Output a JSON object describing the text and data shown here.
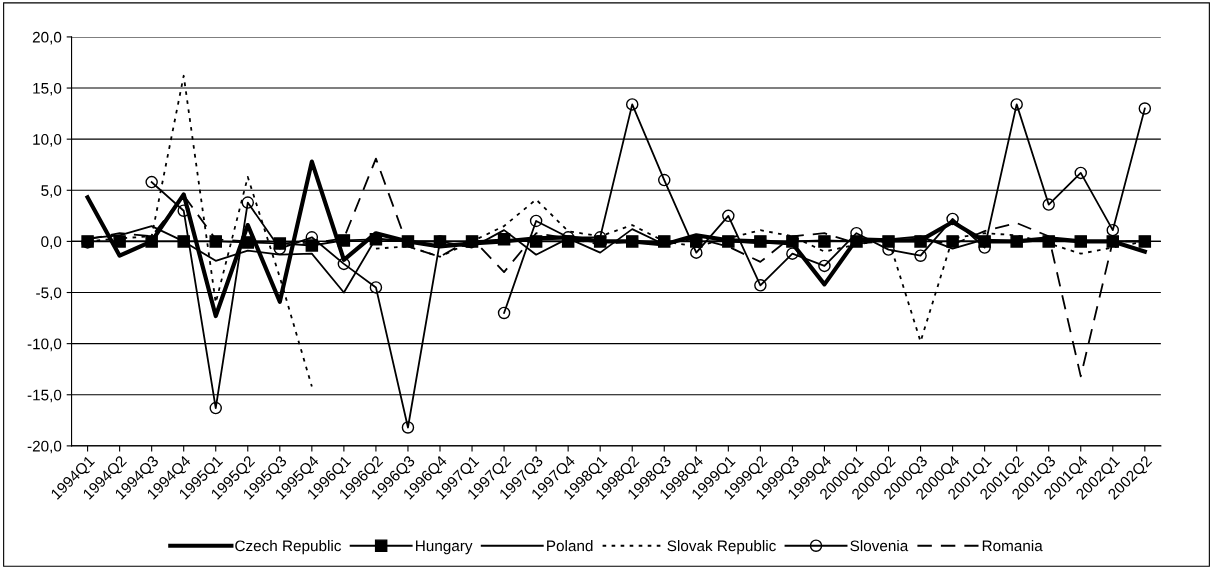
{
  "chart_data": {
    "type": "line",
    "categories": [
      "1994Q1",
      "1994Q2",
      "1994Q3",
      "1994Q4",
      "1995Q1",
      "1995Q2",
      "1995Q3",
      "1995Q4",
      "1996Q1",
      "1996Q2",
      "1996Q3",
      "1996Q4",
      "1997Q1",
      "1997Q2",
      "1997Q3",
      "1997Q4",
      "1998Q1",
      "1998Q2",
      "1998Q3",
      "1998Q4",
      "1999Q1",
      "1999Q2",
      "1999Q3",
      "1999Q4",
      "2000Q1",
      "2000Q2",
      "2000Q3",
      "2000Q4",
      "2001Q1",
      "2001Q2",
      "2001Q3",
      "2001Q4",
      "2002Q1",
      "2002Q2"
    ],
    "series": [
      {
        "name": "Czech Republic",
        "color": "#000000",
        "line_style": "solid",
        "marker": "none",
        "values": [
          4.3,
          -1.4,
          0.0,
          4.6,
          -7.3,
          1.6,
          -5.9,
          7.8,
          -1.8,
          0.8,
          0.0,
          -0.5,
          -0.2,
          0.0,
          0.3,
          0.4,
          0.0,
          0.0,
          -0.3,
          0.6,
          0.1,
          0.0,
          -0.2,
          -4.2,
          0.2,
          0.1,
          0.1,
          1.9,
          0.0,
          0.0,
          0.3,
          0.0,
          0.0,
          -1.0
        ]
      },
      {
        "name": "Hungary",
        "color": "#000000",
        "line_style": "solid",
        "marker": "square",
        "values": [
          0.0,
          0.0,
          0.0,
          0.0,
          0.0,
          -0.1,
          -0.2,
          -0.4,
          0.1,
          0.2,
          0.0,
          0.0,
          0.0,
          0.2,
          0.0,
          0.0,
          0.0,
          0.0,
          0.0,
          0.0,
          0.0,
          0.0,
          0.0,
          0.0,
          0.0,
          0.0,
          0.0,
          0.0,
          0.0,
          0.0,
          0.0,
          0.0,
          0.0,
          0.0
        ]
      },
      {
        "name": "Poland",
        "color": "#000000",
        "line_style": "solid",
        "marker": "none",
        "values": [
          0.3,
          0.6,
          1.5,
          0.0,
          -1.9,
          -0.9,
          -1.3,
          -1.2,
          -5.0,
          0.3,
          0.0,
          0.0,
          -0.6,
          1.1,
          -1.3,
          0.3,
          -1.1,
          1.2,
          -0.3,
          0.6,
          0.0,
          -0.2,
          0.0,
          0.1,
          0.0,
          0.2,
          0.5,
          -0.7,
          0.2,
          0.0,
          0.3,
          0.0,
          0.0,
          0.0
        ]
      },
      {
        "name": "Slovak Republic",
        "color": "#000000",
        "line_style": "dotted",
        "marker": "none",
        "values": [
          0.0,
          0.3,
          0.5,
          16.2,
          -6.0,
          6.3,
          -3.5,
          -14.2,
          null,
          -0.7,
          -0.5,
          -1.5,
          0.0,
          1.5,
          4.1,
          1.0,
          0.5,
          1.6,
          0.0,
          -0.5,
          0.3,
          1.1,
          0.5,
          -1.0,
          -0.3,
          0.2,
          -9.8,
          0.3,
          0.8,
          0.6,
          -0.2,
          -1.2,
          -0.6,
          0.0
        ]
      },
      {
        "name": "Slovenia",
        "color": "#000000",
        "line_style": "solid",
        "marker": "circle",
        "values": [
          -0.1,
          null,
          5.8,
          3.0,
          -16.3,
          3.8,
          -0.7,
          0.4,
          -2.2,
          -4.5,
          -18.2,
          0.0,
          null,
          -7.0,
          2.0,
          0.4,
          0.4,
          13.4,
          6.0,
          -1.1,
          2.5,
          -4.3,
          -1.2,
          -2.4,
          0.8,
          -0.8,
          -1.4,
          2.2,
          -0.6,
          13.4,
          3.6,
          6.7,
          1.1,
          13.0
        ]
      },
      {
        "name": "Romania",
        "color": "#000000",
        "line_style": "dashed",
        "marker": "none",
        "values": [
          0.2,
          0.8,
          0.5,
          4.5,
          0.2,
          0.0,
          0.0,
          -0.2,
          0.3,
          8.1,
          -0.5,
          -1.5,
          0.3,
          -3.0,
          0.8,
          0.3,
          -0.3,
          0.0,
          -0.3,
          0.3,
          -0.5,
          -2.0,
          0.5,
          0.8,
          -0.2,
          0.0,
          0.3,
          -0.3,
          1.0,
          1.8,
          0.5,
          -13.2,
          0.0,
          0.0
        ]
      }
    ],
    "ylim": [
      -20,
      20
    ],
    "yticks": [
      {
        "value": -20,
        "label": "-20,0"
      },
      {
        "value": -15,
        "label": "-15,0"
      },
      {
        "value": -10,
        "label": "-10,0"
      },
      {
        "value": -5,
        "label": "-5,0"
      },
      {
        "value": 0,
        "label": "0,0"
      },
      {
        "value": 5,
        "label": "5,0"
      },
      {
        "value": 10,
        "label": "10,0"
      },
      {
        "value": 15,
        "label": "15,0"
      },
      {
        "value": 20,
        "label": "20,0"
      }
    ],
    "grid": "y",
    "legend": "bottom"
  }
}
